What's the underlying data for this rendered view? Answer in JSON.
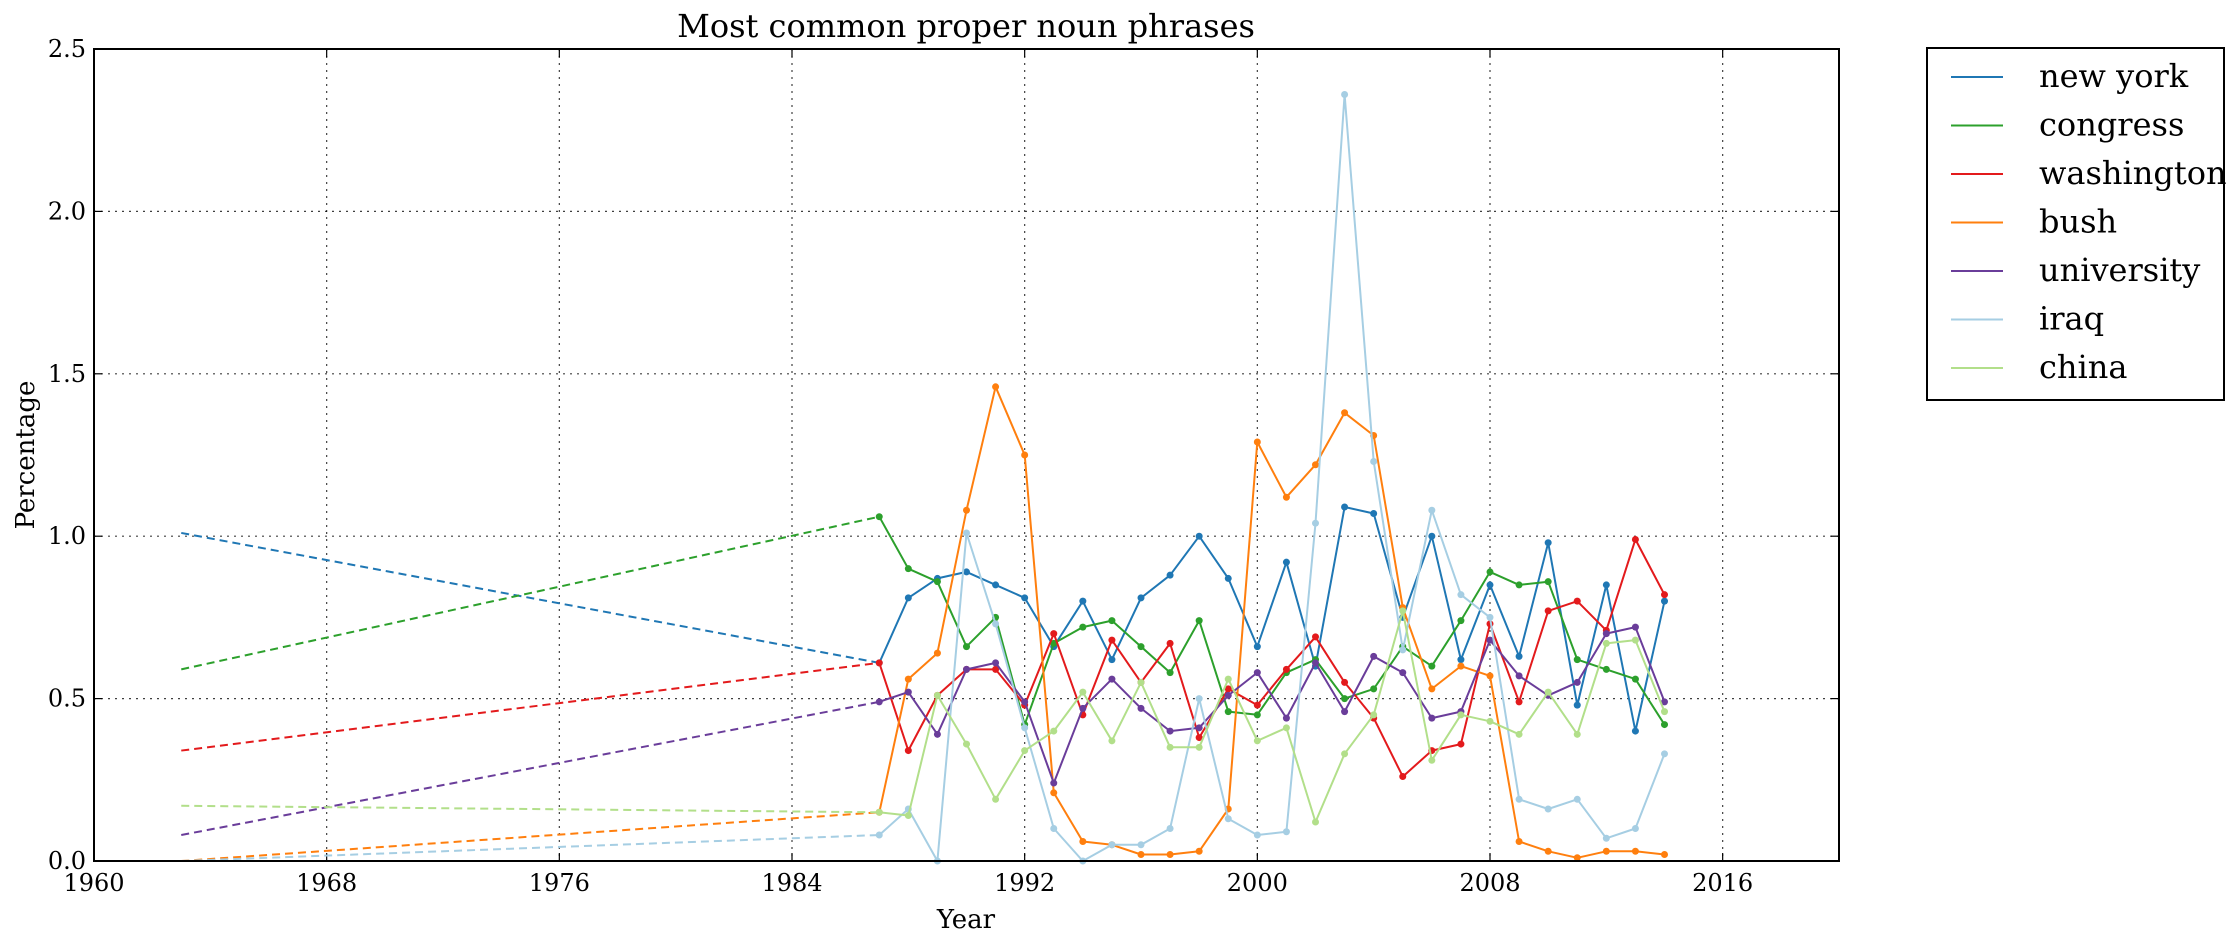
{
  "chart_data": {
    "type": "line",
    "title": "Most common proper noun phrases",
    "xlabel": "Year",
    "ylabel": "Percentage",
    "xlim": [
      1960,
      2020
    ],
    "ylim": [
      0,
      2.5
    ],
    "xticks": [
      1960,
      1968,
      1976,
      1984,
      1992,
      2000,
      2008,
      2016
    ],
    "yticks": [
      0.0,
      0.5,
      1.0,
      1.5,
      2.0,
      2.5
    ],
    "ytick_labels": [
      "0.0",
      "0.5",
      "1.0",
      "1.5",
      "2.0",
      "2.5"
    ],
    "grid": true,
    "legend_position": "outside-top-right",
    "dashed_segment": "from 1963 to 1987 each series is drawn as a dashed line connecting its 1963 value to its 1987 value",
    "series": [
      {
        "name": "new york",
        "color": "#1f77b4",
        "dashed_start": [
          1963,
          1.01
        ],
        "points": [
          [
            1987,
            0.61
          ],
          [
            1988,
            0.81
          ],
          [
            1989,
            0.87
          ],
          [
            1990,
            0.89
          ],
          [
            1991,
            0.85
          ],
          [
            1992,
            0.81
          ],
          [
            1993,
            0.66
          ],
          [
            1994,
            0.8
          ],
          [
            1995,
            0.62
          ],
          [
            1996,
            0.81
          ],
          [
            1997,
            0.88
          ],
          [
            1998,
            1.0
          ],
          [
            1999,
            0.87
          ],
          [
            2000,
            0.66
          ],
          [
            2001,
            0.92
          ],
          [
            2002,
            0.6
          ],
          [
            2003,
            1.09
          ],
          [
            2004,
            1.07
          ],
          [
            2005,
            0.75
          ],
          [
            2006,
            1.0
          ],
          [
            2007,
            0.62
          ],
          [
            2008,
            0.85
          ],
          [
            2009,
            0.63
          ],
          [
            2010,
            0.98
          ],
          [
            2011,
            0.48
          ],
          [
            2012,
            0.85
          ],
          [
            2013,
            0.4
          ],
          [
            2014,
            0.8
          ]
        ]
      },
      {
        "name": "congress",
        "color": "#2ca02c",
        "dashed_start": [
          1963,
          0.59
        ],
        "points": [
          [
            1987,
            1.06
          ],
          [
            1988,
            0.9
          ],
          [
            1989,
            0.86
          ],
          [
            1990,
            0.66
          ],
          [
            1991,
            0.75
          ],
          [
            1992,
            0.42
          ],
          [
            1993,
            0.67
          ],
          [
            1994,
            0.72
          ],
          [
            1995,
            0.74
          ],
          [
            1996,
            0.66
          ],
          [
            1997,
            0.58
          ],
          [
            1998,
            0.74
          ],
          [
            1999,
            0.46
          ],
          [
            2000,
            0.45
          ],
          [
            2001,
            0.58
          ],
          [
            2002,
            0.62
          ],
          [
            2003,
            0.5
          ],
          [
            2004,
            0.53
          ],
          [
            2005,
            0.66
          ],
          [
            2006,
            0.6
          ],
          [
            2007,
            0.74
          ],
          [
            2008,
            0.89
          ],
          [
            2009,
            0.85
          ],
          [
            2010,
            0.86
          ],
          [
            2011,
            0.62
          ],
          [
            2012,
            0.59
          ],
          [
            2013,
            0.56
          ],
          [
            2014,
            0.42
          ]
        ]
      },
      {
        "name": "washington",
        "color": "#e31a1c",
        "dashed_start": [
          1963,
          0.34
        ],
        "points": [
          [
            1987,
            0.61
          ],
          [
            1988,
            0.34
          ],
          [
            1989,
            0.51
          ],
          [
            1990,
            0.59
          ],
          [
            1991,
            0.59
          ],
          [
            1992,
            0.48
          ],
          [
            1993,
            0.7
          ],
          [
            1994,
            0.45
          ],
          [
            1995,
            0.68
          ],
          [
            1996,
            0.55
          ],
          [
            1997,
            0.67
          ],
          [
            1998,
            0.38
          ],
          [
            1999,
            0.53
          ],
          [
            2000,
            0.48
          ],
          [
            2001,
            0.59
          ],
          [
            2002,
            0.69
          ],
          [
            2003,
            0.55
          ],
          [
            2004,
            0.44
          ],
          [
            2005,
            0.26
          ],
          [
            2006,
            0.34
          ],
          [
            2007,
            0.36
          ],
          [
            2008,
            0.73
          ],
          [
            2009,
            0.49
          ],
          [
            2010,
            0.77
          ],
          [
            2011,
            0.8
          ],
          [
            2012,
            0.71
          ],
          [
            2013,
            0.99
          ],
          [
            2014,
            0.82
          ]
        ]
      },
      {
        "name": "bush",
        "color": "#ff7f0e",
        "dashed_start": [
          1963,
          0.0
        ],
        "points": [
          [
            1987,
            0.15
          ],
          [
            1988,
            0.56
          ],
          [
            1989,
            0.64
          ],
          [
            1990,
            1.08
          ],
          [
            1991,
            1.46
          ],
          [
            1992,
            1.25
          ],
          [
            1993,
            0.21
          ],
          [
            1994,
            0.06
          ],
          [
            1995,
            0.05
          ],
          [
            1996,
            0.02
          ],
          [
            1997,
            0.02
          ],
          [
            1998,
            0.03
          ],
          [
            1999,
            0.16
          ],
          [
            2000,
            1.29
          ],
          [
            2001,
            1.12
          ],
          [
            2002,
            1.22
          ],
          [
            2003,
            1.38
          ],
          [
            2004,
            1.31
          ],
          [
            2005,
            0.78
          ],
          [
            2006,
            0.53
          ],
          [
            2007,
            0.6
          ],
          [
            2008,
            0.57
          ],
          [
            2009,
            0.06
          ],
          [
            2010,
            0.03
          ],
          [
            2011,
            0.01
          ],
          [
            2012,
            0.03
          ],
          [
            2013,
            0.03
          ],
          [
            2014,
            0.02
          ]
        ]
      },
      {
        "name": "university",
        "color": "#6a3d9a",
        "dashed_start": [
          1963,
          0.08
        ],
        "points": [
          [
            1987,
            0.49
          ],
          [
            1988,
            0.52
          ],
          [
            1989,
            0.39
          ],
          [
            1990,
            0.59
          ],
          [
            1991,
            0.61
          ],
          [
            1992,
            0.49
          ],
          [
            1993,
            0.24
          ],
          [
            1994,
            0.47
          ],
          [
            1995,
            0.56
          ],
          [
            1996,
            0.47
          ],
          [
            1997,
            0.4
          ],
          [
            1998,
            0.41
          ],
          [
            1999,
            0.51
          ],
          [
            2000,
            0.58
          ],
          [
            2001,
            0.44
          ],
          [
            2002,
            0.61
          ],
          [
            2003,
            0.46
          ],
          [
            2004,
            0.63
          ],
          [
            2005,
            0.58
          ],
          [
            2006,
            0.44
          ],
          [
            2007,
            0.46
          ],
          [
            2008,
            0.68
          ],
          [
            2009,
            0.57
          ],
          [
            2010,
            0.51
          ],
          [
            2011,
            0.55
          ],
          [
            2012,
            0.7
          ],
          [
            2013,
            0.72
          ],
          [
            2014,
            0.49
          ]
        ]
      },
      {
        "name": "iraq",
        "color": "#a6cee3",
        "dashed_start": [
          1963,
          0.0
        ],
        "points": [
          [
            1987,
            0.08
          ],
          [
            1988,
            0.16
          ],
          [
            1989,
            0.0
          ],
          [
            1990,
            1.01
          ],
          [
            1991,
            0.73
          ],
          [
            1992,
            0.41
          ],
          [
            1993,
            0.1
          ],
          [
            1994,
            0.0
          ],
          [
            1995,
            0.05
          ],
          [
            1996,
            0.05
          ],
          [
            1997,
            0.1
          ],
          [
            1998,
            0.5
          ],
          [
            1999,
            0.13
          ],
          [
            2000,
            0.08
          ],
          [
            2001,
            0.09
          ],
          [
            2002,
            1.04
          ],
          [
            2003,
            2.36
          ],
          [
            2004,
            1.23
          ],
          [
            2005,
            0.65
          ],
          [
            2006,
            1.08
          ],
          [
            2007,
            0.82
          ],
          [
            2008,
            0.75
          ],
          [
            2009,
            0.19
          ],
          [
            2010,
            0.16
          ],
          [
            2011,
            0.19
          ],
          [
            2012,
            0.07
          ],
          [
            2013,
            0.1
          ],
          [
            2014,
            0.33
          ]
        ]
      },
      {
        "name": "china",
        "color": "#b2df8a",
        "dashed_start": [
          1963,
          0.17
        ],
        "points": [
          [
            1987,
            0.15
          ],
          [
            1988,
            0.14
          ],
          [
            1989,
            0.51
          ],
          [
            1990,
            0.36
          ],
          [
            1991,
            0.19
          ],
          [
            1992,
            0.34
          ],
          [
            1993,
            0.4
          ],
          [
            1994,
            0.52
          ],
          [
            1995,
            0.37
          ],
          [
            1996,
            0.55
          ],
          [
            1997,
            0.35
          ],
          [
            1998,
            0.35
          ],
          [
            1999,
            0.56
          ],
          [
            2000,
            0.37
          ],
          [
            2001,
            0.41
          ],
          [
            2002,
            0.12
          ],
          [
            2003,
            0.33
          ],
          [
            2004,
            0.45
          ],
          [
            2005,
            0.77
          ],
          [
            2006,
            0.31
          ],
          [
            2007,
            0.45
          ],
          [
            2008,
            0.43
          ],
          [
            2009,
            0.39
          ],
          [
            2010,
            0.52
          ],
          [
            2011,
            0.39
          ],
          [
            2012,
            0.67
          ],
          [
            2013,
            0.68
          ],
          [
            2014,
            0.46
          ]
        ]
      }
    ]
  }
}
